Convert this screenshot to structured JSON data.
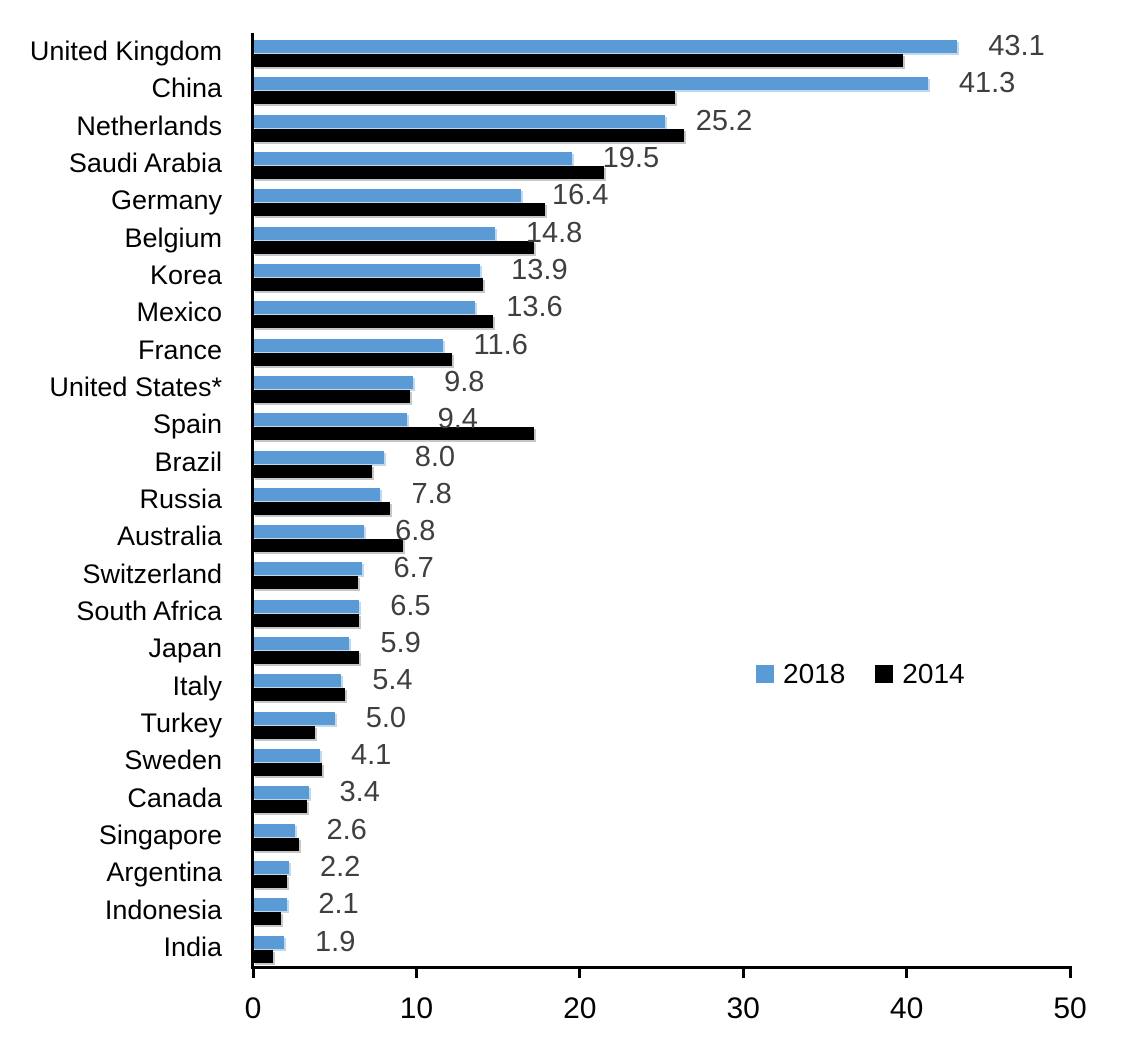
{
  "chart_data": {
    "type": "bar",
    "orientation": "horizontal",
    "title": "",
    "xlabel": "",
    "ylabel": "",
    "xlim": [
      0,
      50
    ],
    "x_ticks": [
      0,
      10,
      20,
      30,
      40,
      50
    ],
    "grid": false,
    "legend_position": "middle-right",
    "data_label_color": "#3f3f3f",
    "categories": [
      "United Kingdom",
      "China",
      "Netherlands",
      "Saudi Arabia",
      "Germany",
      "Belgium",
      "Korea",
      "Mexico",
      "France",
      "United States*",
      "Spain",
      "Brazil",
      "Russia",
      "Australia",
      "Switzerland",
      "South Africa",
      "Japan",
      "Italy",
      "Turkey",
      "Sweden",
      "Canada",
      "Singapore",
      "Argentina",
      "Indonesia",
      "India"
    ],
    "series": [
      {
        "name": "2018",
        "color": "#5B9BD5",
        "values": [
          43.1,
          41.3,
          25.2,
          19.5,
          16.4,
          14.8,
          13.9,
          13.6,
          11.6,
          9.8,
          9.4,
          8.0,
          7.8,
          6.8,
          6.7,
          6.5,
          5.9,
          5.4,
          5.0,
          4.1,
          3.4,
          2.6,
          2.2,
          2.1,
          1.9
        ],
        "data_labels": [
          "43.1",
          "41.3",
          "25.2",
          "19.5",
          "16.4",
          "14.8",
          "13.9",
          "13.6",
          "11.6",
          "9.8",
          "9.4",
          "8.0",
          "7.8",
          "6.8",
          "6.7",
          "6.5",
          "5.9",
          "5.4",
          "5.0",
          "4.1",
          "3.4",
          "2.6",
          "2.2",
          "2.1",
          "1.9"
        ]
      },
      {
        "name": "2014",
        "color": "#000000",
        "values": [
          39.8,
          25.8,
          26.4,
          21.5,
          17.9,
          17.2,
          14.1,
          14.7,
          12.2,
          9.6,
          17.2,
          7.3,
          8.4,
          9.2,
          6.4,
          6.5,
          6.5,
          5.6,
          3.8,
          4.2,
          3.3,
          2.8,
          2.1,
          1.7,
          1.2
        ],
        "data_labels": []
      }
    ]
  }
}
